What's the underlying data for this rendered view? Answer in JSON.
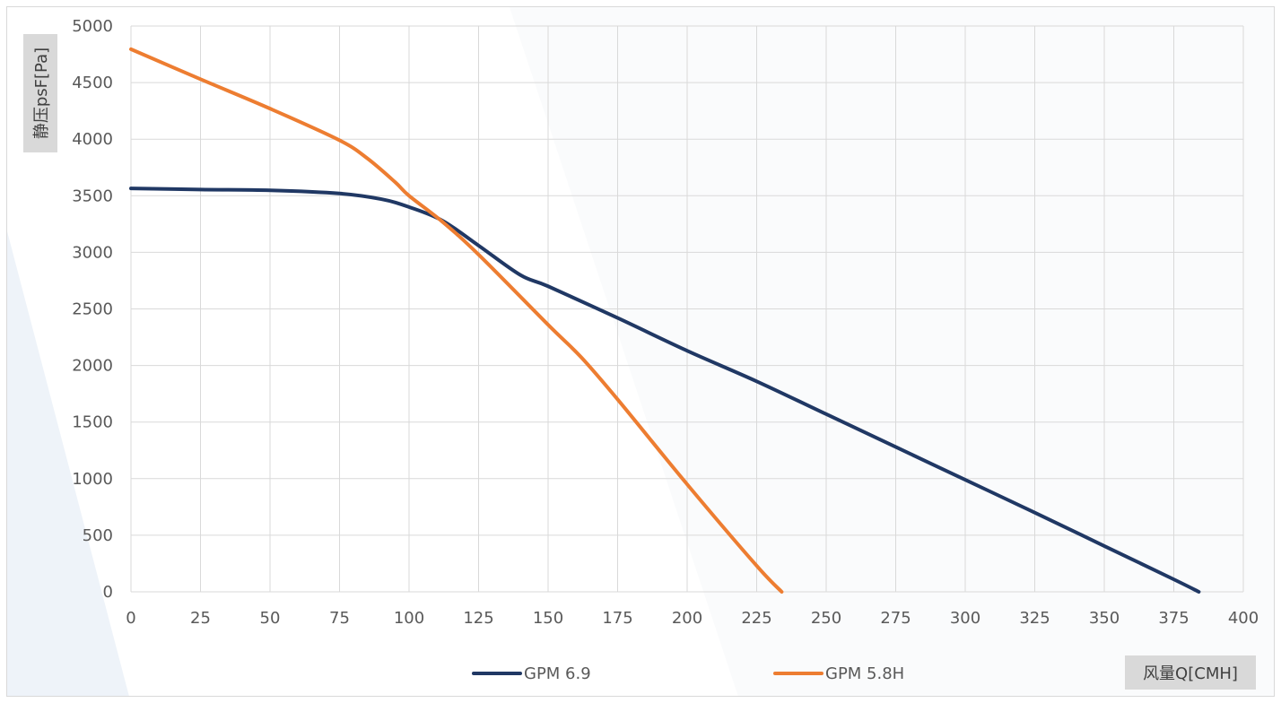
{
  "chart_data": {
    "type": "line",
    "xlabel": "风量Q[CMH]",
    "ylabel": "静压psF[Pa]",
    "xlim": [
      0,
      400
    ],
    "ylim": [
      0,
      5000
    ],
    "x_ticks": [
      "0",
      "25",
      "50",
      "75",
      "100",
      "125",
      "150",
      "175",
      "200",
      "225",
      "250",
      "275",
      "300",
      "325",
      "350",
      "375",
      "400"
    ],
    "y_ticks": [
      "0",
      "500",
      "1000",
      "1500",
      "2000",
      "2500",
      "3000",
      "3500",
      "4000",
      "4500",
      "5000"
    ],
    "grid": true,
    "legend_position": "bottom",
    "series": [
      {
        "name": "GPM 6.9",
        "color": "#203864",
        "points": [
          [
            0,
            3565
          ],
          [
            25,
            3555
          ],
          [
            50,
            3548
          ],
          [
            75,
            3520
          ],
          [
            90,
            3470
          ],
          [
            100,
            3400
          ],
          [
            112,
            3280
          ],
          [
            125,
            3060
          ],
          [
            140,
            2800
          ],
          [
            150,
            2700
          ],
          [
            175,
            2420
          ],
          [
            200,
            2130
          ],
          [
            225,
            1860
          ],
          [
            250,
            1570
          ],
          [
            275,
            1280
          ],
          [
            300,
            990
          ],
          [
            325,
            700
          ],
          [
            350,
            405
          ],
          [
            375,
            110
          ],
          [
            384,
            0
          ]
        ]
      },
      {
        "name": "GPM 5.8H",
        "color": "#ed7d31",
        "points": [
          [
            0,
            4795
          ],
          [
            25,
            4530
          ],
          [
            50,
            4270
          ],
          [
            75,
            3990
          ],
          [
            85,
            3830
          ],
          [
            95,
            3620
          ],
          [
            100,
            3500
          ],
          [
            112,
            3270
          ],
          [
            125,
            2980
          ],
          [
            150,
            2360
          ],
          [
            162,
            2070
          ],
          [
            175,
            1700
          ],
          [
            200,
            950
          ],
          [
            225,
            230
          ],
          [
            234,
            0
          ]
        ]
      }
    ]
  }
}
